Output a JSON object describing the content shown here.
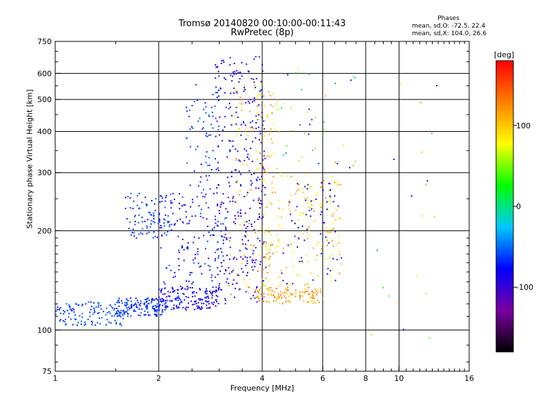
{
  "header": {
    "title_line1": "Tromsø 20140820 00:10:00-00:11:43",
    "title_line2": "RwPretec (8p)"
  },
  "phase_box": {
    "title": "Phases",
    "o_line": "mean, sd,O: -72.5, 22.4",
    "x_line": "mean, sd,X: 104.0, 26.6"
  },
  "colorbar": {
    "label": "[deg]",
    "ticks": [
      {
        "value": 100,
        "label": "100"
      },
      {
        "value": 0,
        "label": "0"
      },
      {
        "value": -100,
        "label": "-100"
      }
    ],
    "range": [
      -180,
      180
    ],
    "colormap": [
      "#000000",
      "#7a00a0",
      "#0000ff",
      "#00c8ff",
      "#00ff00",
      "#ffff00",
      "#ff8000",
      "#ff0000"
    ]
  },
  "chart_data": {
    "type": "scatter",
    "title": "Tromsø 20140820 00:10:00-00:11:43",
    "subtitle": "RwPretec (8p)",
    "xlabel": "Frequency [MHz]",
    "ylabel": "Stationary phase Virtual Height [km]",
    "xscale": "log",
    "yscale": "log",
    "xlim": [
      1,
      16
    ],
    "ylim": [
      75,
      750
    ],
    "xticks": [
      1,
      2,
      4,
      6,
      8,
      10,
      16
    ],
    "xtick_labels": [
      "1",
      "2",
      "4",
      "6",
      "8",
      "10",
      "16"
    ],
    "yticks": [
      75,
      100,
      200,
      300,
      400,
      500,
      600,
      750
    ],
    "ytick_labels": [
      "75",
      "100",
      "200",
      "300",
      "400",
      "500",
      "600",
      "750"
    ],
    "grid": true,
    "color_by": "phase [deg]",
    "clusters": [
      {
        "x_range": [
          1.0,
          1.6
        ],
        "y_range": [
          103,
          122
        ],
        "phase_range": [
          -70,
          -50
        ],
        "count": 120
      },
      {
        "x_range": [
          1.5,
          2.1
        ],
        "y_range": [
          110,
          125
        ],
        "phase_range": [
          -75,
          -55
        ],
        "count": 150
      },
      {
        "x_range": [
          1.6,
          2.2
        ],
        "y_range": [
          190,
          260
        ],
        "phase_range": [
          -75,
          -50
        ],
        "count": 90
      },
      {
        "x_range": [
          2.0,
          3.0
        ],
        "y_range": [
          115,
          135
        ],
        "phase_range": [
          -95,
          -65
        ],
        "count": 160
      },
      {
        "x_range": [
          2.0,
          3.2
        ],
        "y_range": [
          130,
          260
        ],
        "phase_range": [
          -95,
          -55
        ],
        "count": 170
      },
      {
        "x_range": [
          2.4,
          3.0
        ],
        "y_range": [
          260,
          560
        ],
        "phase_range": [
          -75,
          -50
        ],
        "count": 70
      },
      {
        "x_range": [
          2.9,
          4.1
        ],
        "y_range": [
          120,
          680
        ],
        "phase_range": [
          -110,
          -70
        ],
        "count": 320
      },
      {
        "x_range": [
          3.2,
          4.5
        ],
        "y_range": [
          125,
          560
        ],
        "phase_range": [
          60,
          140
        ],
        "count": 140
      },
      {
        "x_range": [
          3.8,
          6.0
        ],
        "y_range": [
          120,
          135
        ],
        "phase_range": [
          95,
          140
        ],
        "count": 110
      },
      {
        "x_range": [
          4.0,
          6.8
        ],
        "y_range": [
          135,
          300
        ],
        "phase_range": [
          60,
          130
        ],
        "count": 160
      },
      {
        "x_range": [
          4.5,
          6.8
        ],
        "y_range": [
          135,
          280
        ],
        "phase_range": [
          -110,
          -70
        ],
        "count": 60
      },
      {
        "x_range": [
          4.5,
          7.5
        ],
        "y_range": [
          300,
          620
        ],
        "phase_range": [
          -100,
          130
        ],
        "count": 40
      },
      {
        "x_range": [
          8.0,
          13.0
        ],
        "y_range": [
          90,
          620
        ],
        "phase_range": [
          -110,
          120
        ],
        "count": 20
      }
    ]
  }
}
